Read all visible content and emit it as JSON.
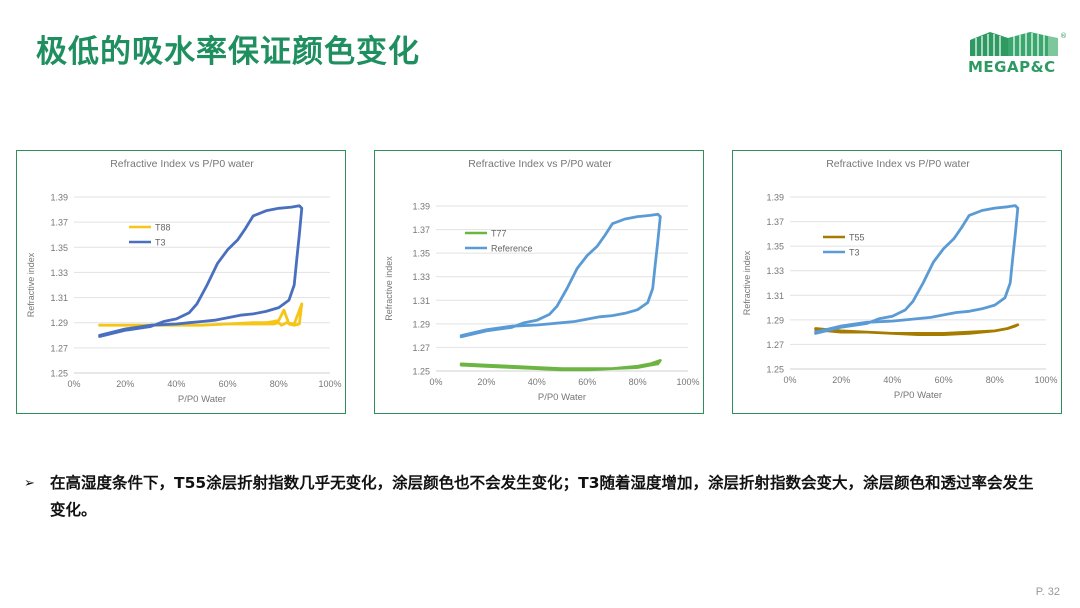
{
  "title": "极低的吸水率保证颜色变化",
  "logo": {
    "text": "MEGAP&C",
    "reg_mark": "®",
    "color": "#2e9a62"
  },
  "bullet": {
    "marker": "➢",
    "text": "在高湿度条件下，T55涂层折射指数几乎无变化，涂层颜色也不会发生变化；T3随着湿度增加，涂层折射指数会变大，涂层颜色和透过率会发生变化。"
  },
  "page_number": "P. 32",
  "chart_data": [
    {
      "type": "line",
      "title": "Refractive Index vs P/P0 water",
      "xlabel": "P/P0 Water",
      "ylabel": "Refractive index",
      "xlim": [
        0,
        100
      ],
      "ylim": [
        1.25,
        1.39
      ],
      "xticks": [
        "0%",
        "20%",
        "40%",
        "60%",
        "80%",
        "100%"
      ],
      "yticks": [
        "1.25",
        "1.27",
        "1.29",
        "1.31",
        "1.33",
        "1.35",
        "1.37",
        "1.39"
      ],
      "legend_position": "upper-left",
      "grid": true,
      "series": [
        {
          "name": "T88",
          "color": "#f5c518",
          "x": [
            10,
            20,
            30,
            40,
            50,
            60,
            70,
            75,
            78,
            80,
            82,
            84,
            86,
            88,
            89,
            86,
            83,
            81,
            80,
            78,
            70,
            60,
            50,
            40,
            30,
            20,
            10
          ],
          "y": [
            1.288,
            1.288,
            1.288,
            1.288,
            1.288,
            1.289,
            1.29,
            1.29,
            1.291,
            1.292,
            1.3,
            1.289,
            1.288,
            1.289,
            1.305,
            1.289,
            1.29,
            1.288,
            1.29,
            1.289,
            1.289,
            1.289,
            1.288,
            1.288,
            1.288,
            1.288,
            1.288
          ]
        },
        {
          "name": "T3",
          "color": "#4a6fbf",
          "x": [
            10,
            20,
            30,
            35,
            40,
            45,
            48,
            52,
            56,
            60,
            64,
            67,
            70,
            75,
            80,
            85,
            88,
            89,
            88,
            87,
            86,
            84,
            80,
            75,
            70,
            65,
            60,
            55,
            50,
            45,
            40,
            30,
            20,
            10
          ],
          "y": [
            1.279,
            1.284,
            1.287,
            1.291,
            1.293,
            1.298,
            1.305,
            1.32,
            1.337,
            1.348,
            1.356,
            1.365,
            1.375,
            1.379,
            1.381,
            1.382,
            1.383,
            1.381,
            1.36,
            1.34,
            1.32,
            1.308,
            1.302,
            1.299,
            1.297,
            1.296,
            1.294,
            1.292,
            1.291,
            1.29,
            1.289,
            1.288,
            1.285,
            1.28
          ]
        }
      ]
    },
    {
      "type": "line",
      "title": "Refractive Index vs P/P0 water",
      "xlabel": "P/P0 Water",
      "ylabel": "Refractive index",
      "xlim": [
        0,
        100
      ],
      "ylim": [
        1.25,
        1.39
      ],
      "xticks": [
        "0%",
        "20%",
        "40%",
        "60%",
        "80%",
        "100%"
      ],
      "yticks": [
        "1.25",
        "1.27",
        "1.29",
        "1.31",
        "1.33",
        "1.35",
        "1.37",
        "1.39"
      ],
      "legend_position": "upper-left",
      "grid": true,
      "series": [
        {
          "name": "T77",
          "color": "#6cb543",
          "x": [
            10,
            20,
            30,
            40,
            50,
            60,
            70,
            80,
            85,
            88,
            89,
            85,
            80,
            70,
            60,
            50,
            40,
            30,
            20,
            10
          ],
          "y": [
            1.256,
            1.255,
            1.254,
            1.253,
            1.252,
            1.252,
            1.252,
            1.253,
            1.255,
            1.256,
            1.259,
            1.256,
            1.254,
            1.252,
            1.251,
            1.251,
            1.252,
            1.253,
            1.254,
            1.255
          ]
        },
        {
          "name": "Reference",
          "color": "#5b9bd5",
          "x": [
            10,
            20,
            30,
            35,
            40,
            45,
            48,
            52,
            56,
            60,
            64,
            67,
            70,
            75,
            80,
            85,
            88,
            89,
            88,
            87,
            86,
            84,
            80,
            75,
            70,
            65,
            60,
            55,
            50,
            45,
            40,
            30,
            20,
            10
          ],
          "y": [
            1.279,
            1.284,
            1.287,
            1.291,
            1.293,
            1.298,
            1.305,
            1.32,
            1.337,
            1.348,
            1.356,
            1.365,
            1.375,
            1.379,
            1.381,
            1.382,
            1.383,
            1.381,
            1.36,
            1.34,
            1.32,
            1.308,
            1.302,
            1.299,
            1.297,
            1.296,
            1.294,
            1.292,
            1.291,
            1.29,
            1.289,
            1.288,
            1.285,
            1.28
          ]
        }
      ]
    },
    {
      "type": "line",
      "title": "Refractive Index vs P/P0 water",
      "xlabel": "P/P0 Water",
      "ylabel": "Refractive index",
      "xlim": [
        0,
        100
      ],
      "ylim": [
        1.25,
        1.39
      ],
      "xticks": [
        "0%",
        "20%",
        "40%",
        "60%",
        "80%",
        "100%"
      ],
      "yticks": [
        "1.25",
        "1.27",
        "1.29",
        "1.31",
        "1.33",
        "1.35",
        "1.37",
        "1.39"
      ],
      "legend_position": "upper-left",
      "grid": true,
      "series": [
        {
          "name": "T55",
          "color": "#a67c00",
          "x": [
            10,
            20,
            30,
            40,
            50,
            60,
            70,
            80,
            85,
            88,
            89,
            85,
            80,
            70,
            60,
            50,
            40,
            30,
            20,
            10
          ],
          "y": [
            1.283,
            1.281,
            1.28,
            1.279,
            1.279,
            1.279,
            1.28,
            1.281,
            1.283,
            1.285,
            1.286,
            1.283,
            1.281,
            1.279,
            1.278,
            1.278,
            1.279,
            1.28,
            1.28,
            1.282
          ]
        },
        {
          "name": "T3",
          "color": "#5b9bd5",
          "x": [
            10,
            20,
            30,
            35,
            40,
            45,
            48,
            52,
            56,
            60,
            64,
            67,
            70,
            75,
            80,
            85,
            88,
            89,
            88,
            87,
            86,
            84,
            80,
            75,
            70,
            65,
            60,
            55,
            50,
            45,
            40,
            30,
            20,
            10
          ],
          "y": [
            1.279,
            1.284,
            1.287,
            1.291,
            1.293,
            1.298,
            1.305,
            1.32,
            1.337,
            1.348,
            1.356,
            1.365,
            1.375,
            1.379,
            1.381,
            1.382,
            1.383,
            1.381,
            1.36,
            1.34,
            1.32,
            1.308,
            1.302,
            1.299,
            1.297,
            1.296,
            1.294,
            1.292,
            1.291,
            1.29,
            1.289,
            1.288,
            1.285,
            1.28
          ]
        }
      ]
    }
  ]
}
